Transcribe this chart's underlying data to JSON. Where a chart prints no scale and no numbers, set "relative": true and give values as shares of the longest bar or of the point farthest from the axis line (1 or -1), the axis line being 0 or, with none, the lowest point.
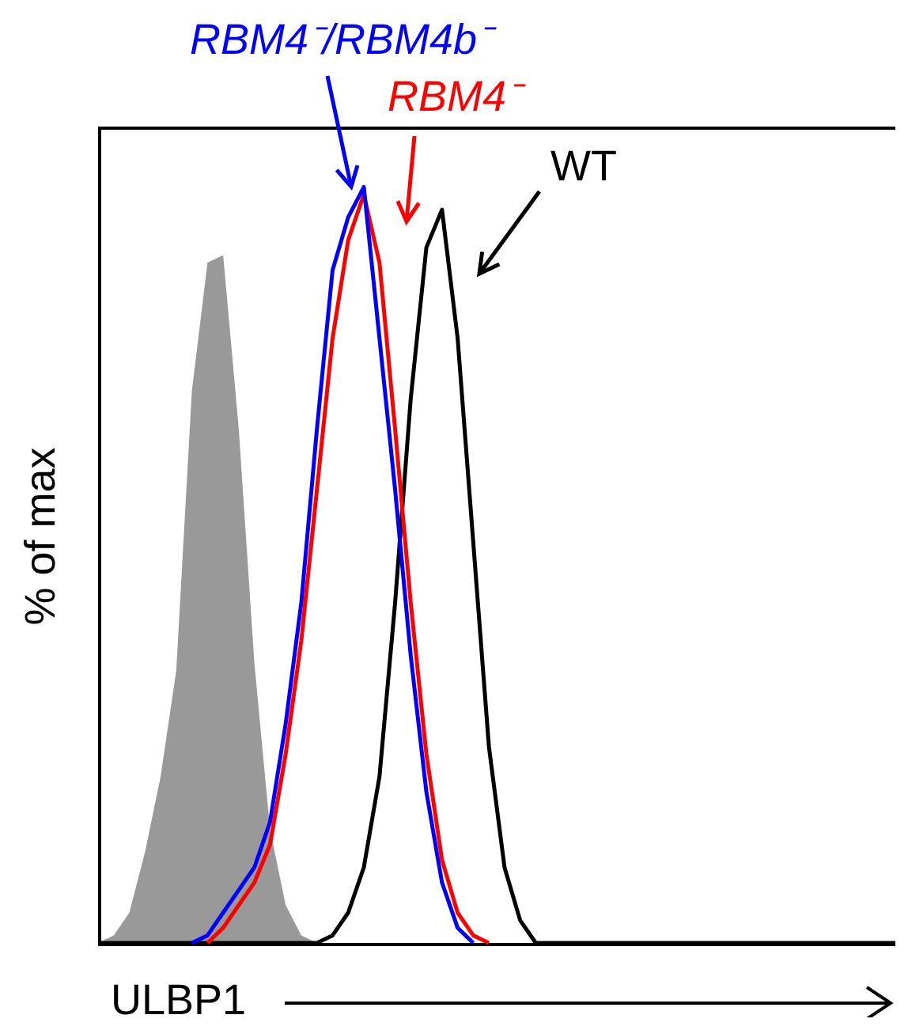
{
  "chart_data": {
    "type": "line",
    "relative": true,
    "xlabel": "ULBP1",
    "ylabel": "% of max",
    "categories": [
      null,
      null,
      null,
      null,
      null,
      null,
      null,
      null,
      null,
      null,
      null,
      null,
      null,
      null,
      null,
      null,
      null,
      null,
      null,
      null,
      null,
      null,
      null,
      null,
      null,
      null,
      null,
      null,
      null,
      null,
      null,
      null,
      null,
      null,
      null,
      null,
      null,
      null,
      null,
      null,
      null,
      null,
      null,
      null,
      null,
      null,
      null,
      null,
      null,
      null,
      null,
      null
    ],
    "series": [
      {
        "type": "area",
        "color": "#999999",
        "values": [
          0,
          0.01,
          0.04,
          0.12,
          0.22,
          0.36,
          0.73,
          0.9,
          0.91,
          0.68,
          0.37,
          0.15,
          0.05,
          0.01,
          0,
          0,
          0,
          0,
          0,
          0,
          0,
          0,
          0,
          0,
          0,
          0,
          0,
          0,
          0,
          0,
          0,
          0,
          0,
          0,
          0,
          0,
          0,
          0,
          0,
          0,
          0,
          0,
          0,
          0,
          0,
          0,
          0,
          0,
          0,
          0,
          0,
          0
        ]
      },
      {
        "name": "WT",
        "color": "#000000",
        "values": [
          0,
          0,
          0,
          0,
          0,
          0,
          0,
          0,
          0,
          0,
          0,
          0,
          0,
          0,
          0,
          0.01,
          0.04,
          0.1,
          0.22,
          0.45,
          0.72,
          0.92,
          0.97,
          0.8,
          0.53,
          0.26,
          0.1,
          0.03,
          0,
          0,
          0,
          0,
          0,
          0,
          0,
          0,
          0,
          0,
          0,
          0,
          0,
          0,
          0,
          0,
          0,
          0,
          0,
          0,
          0,
          0,
          0,
          0
        ]
      },
      {
        "name": "RBM4⁻",
        "color": "#ff0000",
        "values": [
          null,
          null,
          null,
          null,
          null,
          null,
          null,
          0,
          0.02,
          0.05,
          0.08,
          0.13,
          0.25,
          0.4,
          0.6,
          0.8,
          0.93,
          0.99,
          0.9,
          0.68,
          0.45,
          0.25,
          0.11,
          0.04,
          0.01,
          0,
          null,
          null,
          null,
          null,
          null,
          null,
          null,
          null,
          null,
          null,
          null,
          null,
          null,
          null,
          null,
          null,
          null,
          null,
          null,
          null,
          null,
          null,
          null,
          null,
          null,
          null
        ]
      },
      {
        "name": "RBM4⁻/RBM4b⁻",
        "color": "#0000ff",
        "values": [
          null,
          null,
          null,
          null,
          null,
          null,
          0,
          0.01,
          0.04,
          0.07,
          0.1,
          0.16,
          0.29,
          0.45,
          0.68,
          0.89,
          0.96,
          1,
          0.8,
          0.6,
          0.38,
          0.2,
          0.08,
          0.02,
          0,
          null,
          null,
          null,
          null,
          null,
          null,
          null,
          null,
          null,
          null,
          null,
          null,
          null,
          null,
          null,
          null,
          null,
          null,
          null,
          null,
          null,
          null,
          null,
          null,
          null,
          null,
          null
        ]
      }
    ]
  }
}
